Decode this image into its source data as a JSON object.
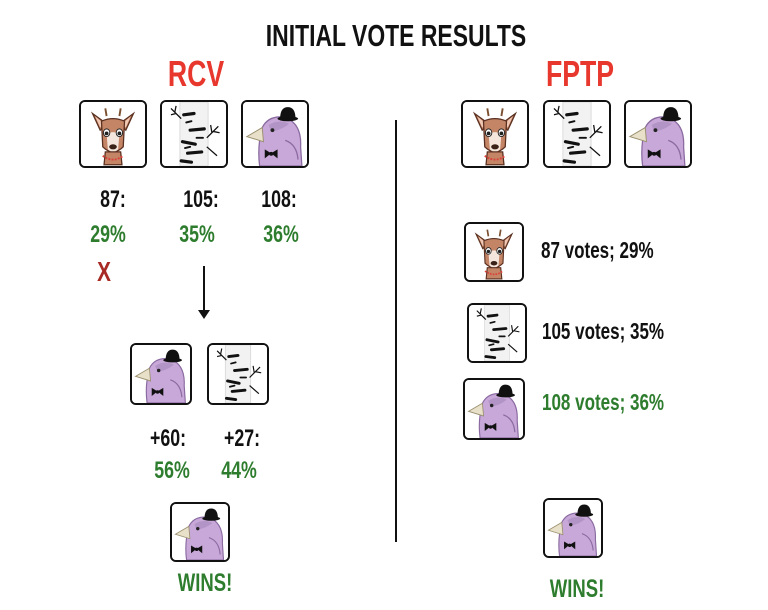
{
  "title": "INITIAL VOTE RESULTS",
  "rcv": {
    "heading": "RCV",
    "round1": [
      {
        "candidate": "deer",
        "count": "87:",
        "pct": "29%"
      },
      {
        "candidate": "birch",
        "count": "105:",
        "pct": "35%"
      },
      {
        "candidate": "bird",
        "count": "108:",
        "pct": "36%"
      }
    ],
    "eliminated_mark": "X",
    "round2": [
      {
        "candidate": "bird",
        "count": "+60:",
        "pct": "56%"
      },
      {
        "candidate": "birch",
        "count": "+27:",
        "pct": "44%"
      }
    ],
    "winner": "bird",
    "winner_label": "WINS!"
  },
  "fptp": {
    "heading": "FPTP",
    "candidates": [
      "deer",
      "birch",
      "bird"
    ],
    "results": [
      {
        "candidate": "deer",
        "label": "87 votes; 29%"
      },
      {
        "candidate": "birch",
        "label": "105 votes; 35%"
      },
      {
        "candidate": "bird",
        "label": "108 votes; 36%"
      }
    ],
    "winner": "bird",
    "winner_label": "WINS!"
  },
  "colors": {
    "heading_red": "#e8382e",
    "eliminated_red": "#a82a24",
    "green": "#2e7d2e",
    "black": "#111111"
  },
  "icons": {
    "deer": "deer-icon",
    "birch": "birch-tree-icon",
    "bird": "bird-with-bowler-hat-icon"
  }
}
